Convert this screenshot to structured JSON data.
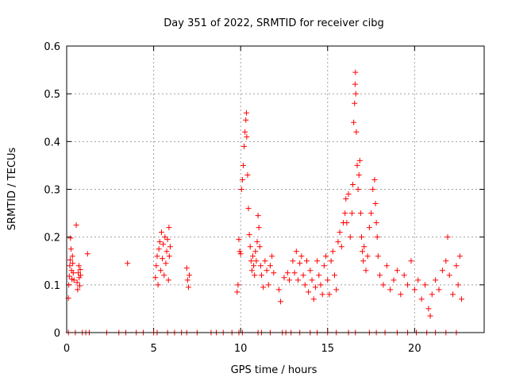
{
  "chart_data": {
    "type": "scatter",
    "title": "Day 351 of 2022, SRMTID for receiver cibg",
    "xlabel": "GPS time / hours",
    "ylabel": "SRMTID / TECUs",
    "xlim": [
      0,
      24
    ],
    "ylim": [
      0,
      0.6
    ],
    "xticks": [
      0,
      5,
      10,
      15,
      20
    ],
    "xtick_labels": [
      "0",
      "5",
      "10",
      "15",
      "20"
    ],
    "yticks": [
      0,
      0.1,
      0.2,
      0.3,
      0.4,
      0.5,
      0.6
    ],
    "ytick_labels": [
      "0",
      "0.1",
      "0.2",
      "0.3",
      "0.4",
      "0.5",
      "0.6"
    ],
    "grid": true,
    "marker": "+",
    "color": "#ff0000",
    "series": [
      {
        "name": "SRMTID",
        "points": [
          [
            0.1,
            0.072
          ],
          [
            0.12,
            0.1
          ],
          [
            0.15,
            0.118
          ],
          [
            0.18,
            0.14
          ],
          [
            0.2,
            0.152
          ],
          [
            0.22,
            0.198
          ],
          [
            0.25,
            0.175
          ],
          [
            0.28,
            0.13
          ],
          [
            0.3,
            0.112
          ],
          [
            0.33,
            0.16
          ],
          [
            0.35,
            0.145
          ],
          [
            0.38,
            0.125
          ],
          [
            0.42,
            0.11
          ],
          [
            0.55,
            0.225
          ],
          [
            0.6,
            0.105
          ],
          [
            0.63,
            0.09
          ],
          [
            0.66,
            0.125
          ],
          [
            0.7,
            0.14
          ],
          [
            0.72,
            0.115
          ],
          [
            0.75,
            0.098
          ],
          [
            0.78,
            0.132
          ],
          [
            0.8,
            0.12
          ],
          [
            1.2,
            0.165
          ],
          [
            3.5,
            0.145
          ],
          [
            5.1,
            0.115
          ],
          [
            5.15,
            0.14
          ],
          [
            5.2,
            0.16
          ],
          [
            5.25,
            0.1
          ],
          [
            5.3,
            0.175
          ],
          [
            5.35,
            0.19
          ],
          [
            5.4,
            0.13
          ],
          [
            5.45,
            0.21
          ],
          [
            5.5,
            0.155
          ],
          [
            5.55,
            0.185
          ],
          [
            5.6,
            0.12
          ],
          [
            5.65,
            0.2
          ],
          [
            5.7,
            0.145
          ],
          [
            5.75,
            0.17
          ],
          [
            5.8,
            0.195
          ],
          [
            5.85,
            0.11
          ],
          [
            5.88,
            0.22
          ],
          [
            5.9,
            0.16
          ],
          [
            5.95,
            0.18
          ],
          [
            6.9,
            0.135
          ],
          [
            6.95,
            0.11
          ],
          [
            7.0,
            0.095
          ],
          [
            7.05,
            0.12
          ],
          [
            9.8,
            0.085
          ],
          [
            9.85,
            0.1
          ],
          [
            9.9,
            0.195
          ],
          [
            9.95,
            0.17
          ],
          [
            10.0,
            0.165
          ],
          [
            10.05,
            0.3
          ],
          [
            10.1,
            0.32
          ],
          [
            10.15,
            0.35
          ],
          [
            10.2,
            0.39
          ],
          [
            10.25,
            0.42
          ],
          [
            10.3,
            0.445
          ],
          [
            10.33,
            0.46
          ],
          [
            10.35,
            0.41
          ],
          [
            10.4,
            0.33
          ],
          [
            10.45,
            0.26
          ],
          [
            10.5,
            0.205
          ],
          [
            10.55,
            0.18
          ],
          [
            10.6,
            0.15
          ],
          [
            10.65,
            0.13
          ],
          [
            10.7,
            0.16
          ],
          [
            10.75,
            0.14
          ],
          [
            10.8,
            0.12
          ],
          [
            10.85,
            0.17
          ],
          [
            10.9,
            0.15
          ],
          [
            10.95,
            0.19
          ],
          [
            11.0,
            0.245
          ],
          [
            11.05,
            0.22
          ],
          [
            11.1,
            0.18
          ],
          [
            11.15,
            0.14
          ],
          [
            11.2,
            0.12
          ],
          [
            11.3,
            0.095
          ],
          [
            11.4,
            0.15
          ],
          [
            11.5,
            0.13
          ],
          [
            11.6,
            0.1
          ],
          [
            11.7,
            0.14
          ],
          [
            11.8,
            0.16
          ],
          [
            11.9,
            0.125
          ],
          [
            12.2,
            0.09
          ],
          [
            12.3,
            0.065
          ],
          [
            12.5,
            0.115
          ],
          [
            12.7,
            0.125
          ],
          [
            12.8,
            0.11
          ],
          [
            13.0,
            0.15
          ],
          [
            13.1,
            0.125
          ],
          [
            13.2,
            0.17
          ],
          [
            13.3,
            0.11
          ],
          [
            13.4,
            0.145
          ],
          [
            13.5,
            0.16
          ],
          [
            13.6,
            0.12
          ],
          [
            13.7,
            0.1
          ],
          [
            13.8,
            0.15
          ],
          [
            13.9,
            0.085
          ],
          [
            14.0,
            0.13
          ],
          [
            14.1,
            0.11
          ],
          [
            14.2,
            0.07
          ],
          [
            14.3,
            0.095
          ],
          [
            14.4,
            0.15
          ],
          [
            14.5,
            0.12
          ],
          [
            14.6,
            0.1
          ],
          [
            14.7,
            0.08
          ],
          [
            14.8,
            0.14
          ],
          [
            14.9,
            0.16
          ],
          [
            15.0,
            0.11
          ],
          [
            15.1,
            0.08
          ],
          [
            15.2,
            0.15
          ],
          [
            15.3,
            0.17
          ],
          [
            15.4,
            0.12
          ],
          [
            15.5,
            0.09
          ],
          [
            15.6,
            0.19
          ],
          [
            15.7,
            0.21
          ],
          [
            15.8,
            0.18
          ],
          [
            15.9,
            0.23
          ],
          [
            16.0,
            0.25
          ],
          [
            16.05,
            0.28
          ],
          [
            16.1,
            0.23
          ],
          [
            16.2,
            0.29
          ],
          [
            16.3,
            0.2
          ],
          [
            16.4,
            0.25
          ],
          [
            16.45,
            0.31
          ],
          [
            16.5,
            0.44
          ],
          [
            16.55,
            0.48
          ],
          [
            16.58,
            0.52
          ],
          [
            16.6,
            0.545
          ],
          [
            16.62,
            0.5
          ],
          [
            16.65,
            0.42
          ],
          [
            16.7,
            0.35
          ],
          [
            16.75,
            0.3
          ],
          [
            16.8,
            0.33
          ],
          [
            16.85,
            0.36
          ],
          [
            16.9,
            0.25
          ],
          [
            16.95,
            0.2
          ],
          [
            17.0,
            0.17
          ],
          [
            17.05,
            0.15
          ],
          [
            17.1,
            0.18
          ],
          [
            17.2,
            0.13
          ],
          [
            17.3,
            0.16
          ],
          [
            17.4,
            0.22
          ],
          [
            17.5,
            0.25
          ],
          [
            17.6,
            0.3
          ],
          [
            17.7,
            0.32
          ],
          [
            17.75,
            0.27
          ],
          [
            17.8,
            0.23
          ],
          [
            17.85,
            0.2
          ],
          [
            17.9,
            0.16
          ],
          [
            18.0,
            0.12
          ],
          [
            18.2,
            0.1
          ],
          [
            18.4,
            0.14
          ],
          [
            18.6,
            0.09
          ],
          [
            18.8,
            0.11
          ],
          [
            19.0,
            0.13
          ],
          [
            19.2,
            0.08
          ],
          [
            19.4,
            0.12
          ],
          [
            19.6,
            0.1
          ],
          [
            19.8,
            0.15
          ],
          [
            20.0,
            0.09
          ],
          [
            20.2,
            0.11
          ],
          [
            20.4,
            0.07
          ],
          [
            20.6,
            0.1
          ],
          [
            20.8,
            0.05
          ],
          [
            20.9,
            0.035
          ],
          [
            21.0,
            0.08
          ],
          [
            21.2,
            0.11
          ],
          [
            21.4,
            0.09
          ],
          [
            21.6,
            0.13
          ],
          [
            21.8,
            0.15
          ],
          [
            21.9,
            0.2
          ],
          [
            22.0,
            0.12
          ],
          [
            22.2,
            0.08
          ],
          [
            22.4,
            0.14
          ],
          [
            22.5,
            0.1
          ],
          [
            22.6,
            0.16
          ],
          [
            22.7,
            0.07
          ],
          [
            0.1,
            0.0
          ],
          [
            0.5,
            0.0
          ],
          [
            0.9,
            0.0
          ],
          [
            1.1,
            0.0
          ],
          [
            1.3,
            0.0
          ],
          [
            2.3,
            0.0
          ],
          [
            3.0,
            0.0
          ],
          [
            3.4,
            0.0
          ],
          [
            4.0,
            0.0
          ],
          [
            4.4,
            0.0
          ],
          [
            5.0,
            0.0
          ],
          [
            5.2,
            0.0
          ],
          [
            5.8,
            0.0
          ],
          [
            6.2,
            0.0
          ],
          [
            6.6,
            0.0
          ],
          [
            6.9,
            0.0
          ],
          [
            7.5,
            0.0
          ],
          [
            8.3,
            0.0
          ],
          [
            8.6,
            0.0
          ],
          [
            9.0,
            0.0
          ],
          [
            9.5,
            0.0
          ],
          [
            9.9,
            0.0
          ],
          [
            10.1,
            0.0
          ],
          [
            11.0,
            0.0
          ],
          [
            11.2,
            0.0
          ],
          [
            11.7,
            0.0
          ],
          [
            12.4,
            0.0
          ],
          [
            12.6,
            0.0
          ],
          [
            12.9,
            0.0
          ],
          [
            13.4,
            0.0
          ],
          [
            14.0,
            0.0
          ],
          [
            14.4,
            0.0
          ],
          [
            15.0,
            0.0
          ],
          [
            15.5,
            0.0
          ],
          [
            16.2,
            0.0
          ],
          [
            16.6,
            0.0
          ],
          [
            17.4,
            0.0
          ],
          [
            17.8,
            0.0
          ],
          [
            18.3,
            0.0
          ],
          [
            19.0,
            0.0
          ],
          [
            19.6,
            0.0
          ],
          [
            20.1,
            0.0
          ],
          [
            20.7,
            0.0
          ],
          [
            21.2,
            0.0
          ],
          [
            21.8,
            0.0
          ],
          [
            22.4,
            0.0
          ]
        ]
      }
    ]
  }
}
